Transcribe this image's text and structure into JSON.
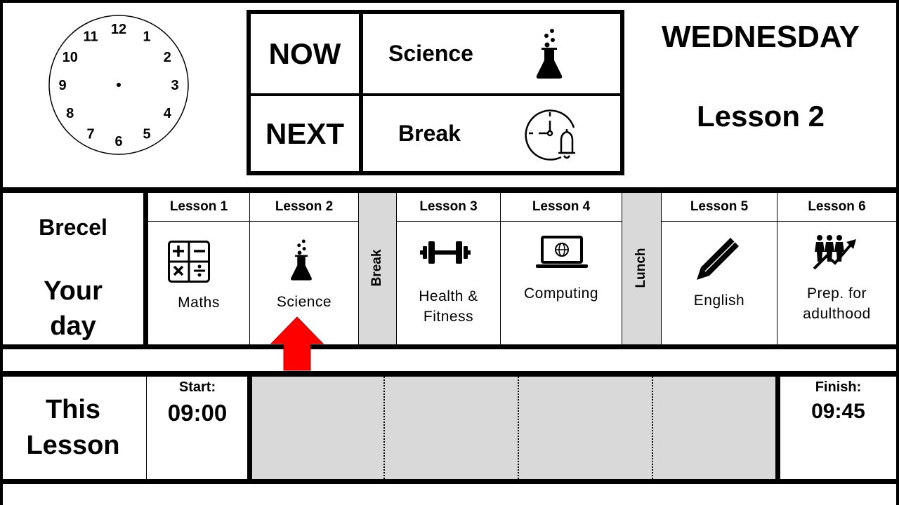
{
  "clock": {
    "numbers": [
      "12",
      "1",
      "2",
      "3",
      "4",
      "5",
      "6",
      "7",
      "8",
      "9",
      "10",
      "11"
    ]
  },
  "now_next": {
    "now_label": "NOW",
    "now_subject": "Science",
    "now_icon": "flask-icon",
    "next_label": "NEXT",
    "next_subject": "Break",
    "next_icon": "clock-bell-icon"
  },
  "day": {
    "name": "WEDNESDAY",
    "current_lesson": "Lesson 2"
  },
  "student": {
    "name": "Brecel",
    "caption_line1": "Your",
    "caption_line2": "day"
  },
  "schedule": {
    "lessons": [
      {
        "header": "Lesson 1",
        "subject": "Maths",
        "icon": "maths-symbols-icon"
      },
      {
        "header": "Lesson 2",
        "subject": "Science",
        "icon": "flask-icon"
      },
      {
        "header": "Lesson 3",
        "subject_line1": "Health &",
        "subject_line2": "Fitness",
        "icon": "dumbbell-icon"
      },
      {
        "header": "Lesson 4",
        "subject": "Computing",
        "icon": "laptop-icon"
      },
      {
        "header": "Lesson 5",
        "subject": "English",
        "icon": "pencil-icon"
      },
      {
        "header": "Lesson 6",
        "subject_line1": "Prep. for",
        "subject_line2": "adulthood",
        "icon": "people-growth-icon"
      }
    ],
    "break_label": "Break",
    "lunch_label": "Lunch",
    "current_marker_icon": "red-up-arrow-icon"
  },
  "this_lesson": {
    "title_line1": "This",
    "title_line2": "Lesson",
    "start_label": "Start:",
    "start_time": "09:00",
    "finish_label": "Finish:",
    "finish_time": "09:45",
    "progress_fraction": 0
  },
  "colors": {
    "grey": "#d9d9d9",
    "arrow": "#ff0000",
    "border": "#000000"
  }
}
